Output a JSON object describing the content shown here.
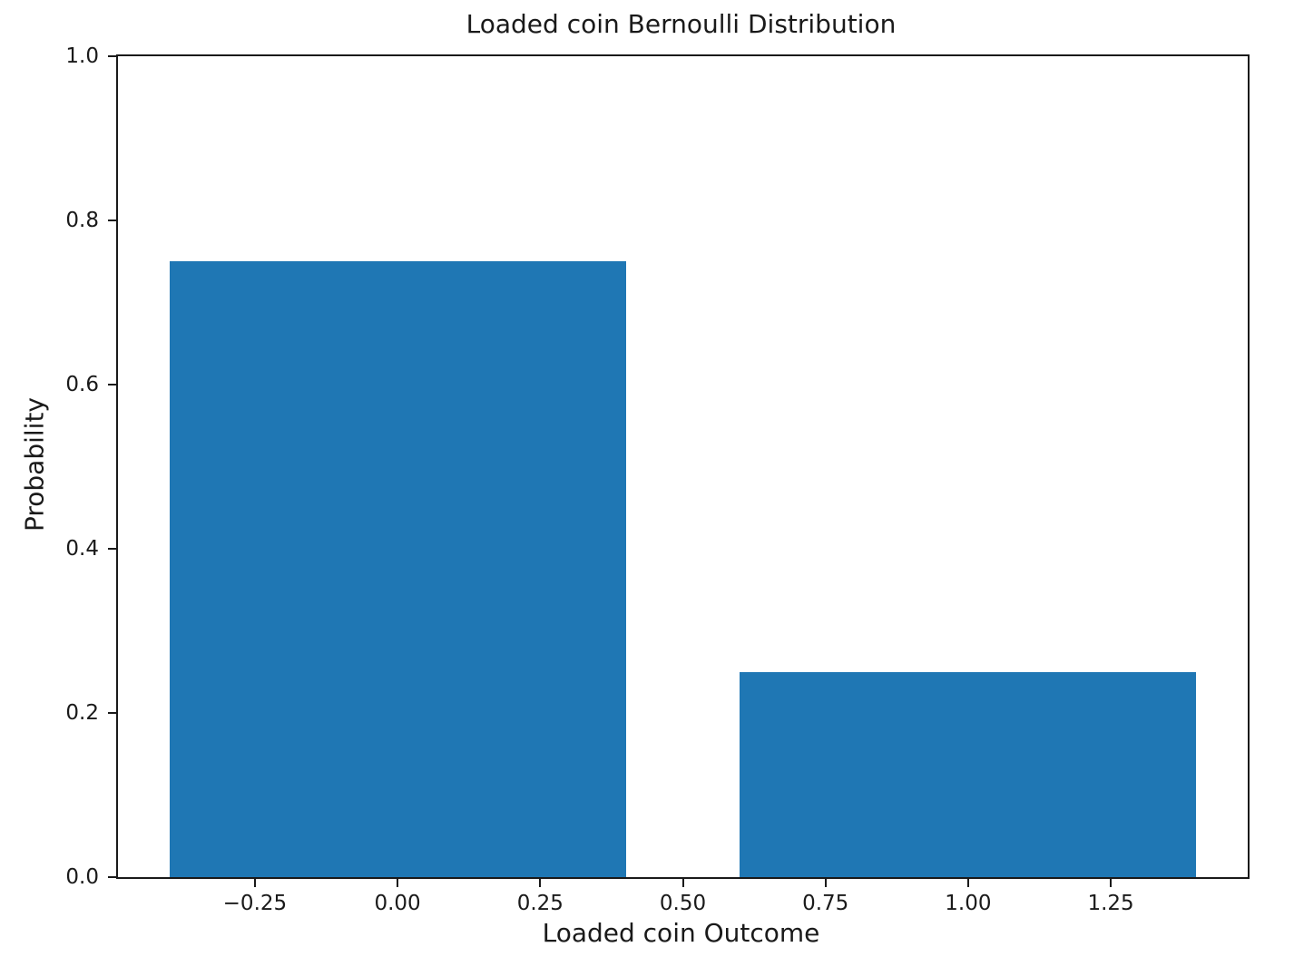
{
  "chart_data": {
    "type": "bar",
    "title": "Loaded coin Bernoulli Distribution",
    "xlabel": "Loaded coin Outcome",
    "ylabel": "Probability",
    "categories": [
      0,
      1
    ],
    "values": [
      0.75,
      0.25
    ],
    "bar_width": 0.8,
    "bar_color": "#1f77b4",
    "xlim": [
      -0.49,
      1.49
    ],
    "ylim": [
      0,
      1
    ],
    "x_ticks": [
      -0.25,
      0.0,
      0.25,
      0.5,
      0.75,
      1.0,
      1.25
    ],
    "x_tick_labels": [
      "−0.25",
      "0.00",
      "0.25",
      "0.50",
      "0.75",
      "1.00",
      "1.25"
    ],
    "y_ticks": [
      0.0,
      0.2,
      0.4,
      0.6,
      0.8,
      1.0
    ],
    "y_tick_labels": [
      "0.0",
      "0.2",
      "0.4",
      "0.6",
      "0.8",
      "1.0"
    ],
    "grid": false,
    "legend": null
  }
}
